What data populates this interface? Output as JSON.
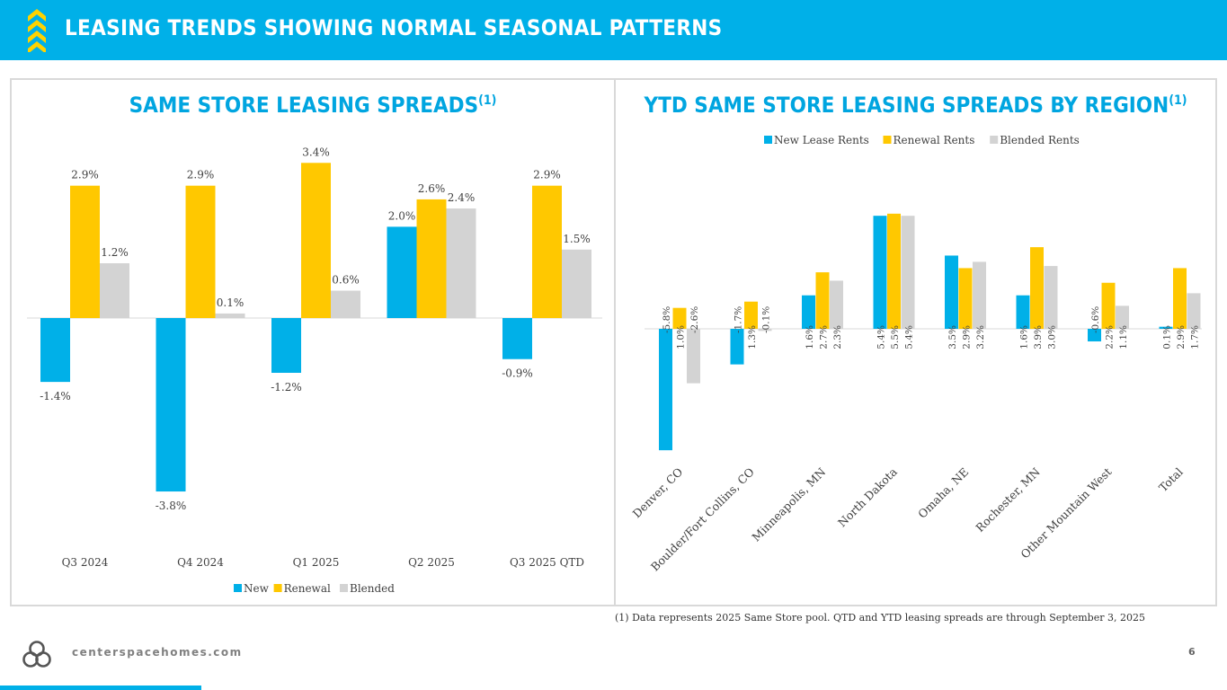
{
  "header": {
    "title": "LEASING TRENDS SHOWING NORMAL SEASONAL PATTERNS"
  },
  "colors": {
    "new": "#00b0e8",
    "renewal": "#ffc800",
    "blended": "#d3d3d3",
    "accent": "#00a5e0"
  },
  "chart_data": [
    {
      "type": "bar",
      "title": "SAME STORE LEASING SPREADS",
      "title_sup": "(1)",
      "categories": [
        "Q3 2024",
        "Q4 2024",
        "Q1 2025",
        "Q2 2025",
        "Q3 2025 QTD"
      ],
      "series": [
        {
          "name": "New",
          "values": [
            -1.4,
            -3.8,
            -1.2,
            2.0,
            -0.9
          ],
          "labels": [
            "-1.4%",
            "-3.8%",
            "-1.2%",
            "2.0%",
            "-0.9%"
          ]
        },
        {
          "name": "Renewal",
          "values": [
            2.9,
            2.9,
            3.4,
            2.6,
            2.9
          ],
          "labels": [
            "2.9%",
            "2.9%",
            "3.4%",
            "2.6%",
            "2.9%"
          ]
        },
        {
          "name": "Blended",
          "values": [
            1.2,
            0.1,
            0.6,
            2.4,
            1.5
          ],
          "labels": [
            "1.2%",
            "0.1%",
            "0.6%",
            "2.4%",
            "1.5%"
          ]
        }
      ],
      "ylim": [
        -4.0,
        3.6
      ],
      "legend": "bottom"
    },
    {
      "type": "bar",
      "title": "YTD SAME STORE LEASING SPREADS BY REGION",
      "title_sup": "(1)",
      "categories": [
        "Denver, CO",
        "Boulder/Fort Collins, CO",
        "Minneapolis, MN",
        "North Dakota",
        "Omaha, NE",
        "Rochester, MN",
        "Other Mountain West",
        "Total"
      ],
      "series": [
        {
          "name": "New Lease Rents",
          "values": [
            -5.8,
            -1.7,
            1.6,
            5.4,
            3.5,
            1.6,
            -0.6,
            0.1
          ],
          "labels": [
            "-5.8%",
            "-1.7%",
            "1.6%",
            "5.4%",
            "3.5%",
            "1.6%",
            "-0.6%",
            "0.1%"
          ]
        },
        {
          "name": "Renewal Rents",
          "values": [
            1.0,
            1.3,
            2.7,
            5.5,
            2.9,
            3.9,
            2.2,
            2.9
          ],
          "labels": [
            "1.0%",
            "1.3%",
            "2.7%",
            "5.5%",
            "2.9%",
            "3.9%",
            "2.2%",
            "2.9%"
          ]
        },
        {
          "name": "Blended Rents",
          "values": [
            -2.6,
            -0.1,
            2.3,
            5.4,
            3.2,
            3.0,
            1.1,
            1.7
          ],
          "labels": [
            "-2.6%",
            "-0.1%",
            "2.3%",
            "5.4%",
            "3.2%",
            "3.0%",
            "1.1%",
            "1.7%"
          ]
        }
      ],
      "ylim": [
        -6.0,
        6.0
      ],
      "legend": "top"
    }
  ],
  "footnote": "(1)  Data represents 2025 Same Store pool. QTD and YTD leasing spreads are through September 3, 2025",
  "footer": {
    "website": "centerspacehomes.com",
    "page_number": "6"
  }
}
